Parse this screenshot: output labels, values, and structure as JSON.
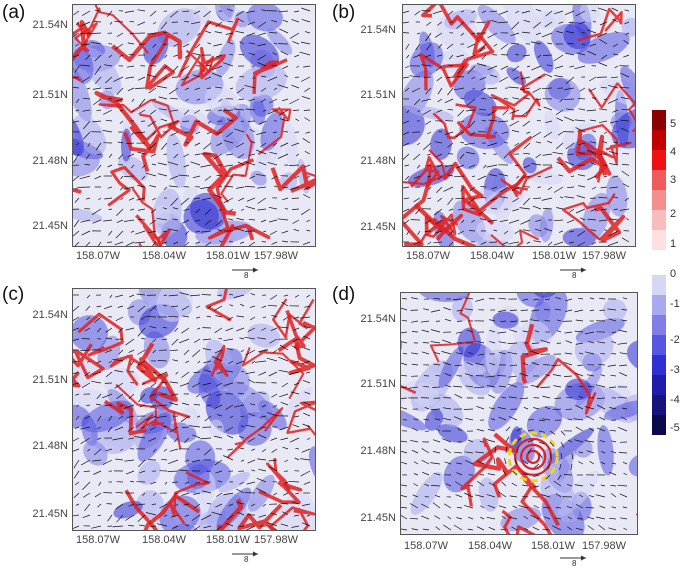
{
  "panels": [
    {
      "label": "(a)",
      "type": "cold-pool"
    },
    {
      "label": "(b)",
      "type": "cold-pool"
    },
    {
      "label": "(c)",
      "type": "cold-pool"
    },
    {
      "label": "(d)",
      "type": "vortex"
    }
  ],
  "y_ticks": [
    "21.54N",
    "21.51N",
    "21.48N",
    "21.45N"
  ],
  "x_ticks": [
    "158.07W",
    "158.04W",
    "158.01W",
    "157.98W"
  ],
  "ref_vector": "8",
  "colorbar_positive": {
    "ticks": [
      "5",
      "4",
      "3",
      "2",
      "1"
    ],
    "colors": [
      "#8b0000",
      "#c00000",
      "#ee1111",
      "#f15a5a",
      "#f58e8e",
      "#f8bcbc",
      "#fde0e0"
    ]
  },
  "colorbar_negative": {
    "ticks": [
      "0",
      "-1",
      "-2",
      "-3",
      "-4",
      "-5"
    ],
    "colors": [
      "#d6d6f5",
      "#a9a9ef",
      "#7f7fe6",
      "#5656e0",
      "#2f2fd4",
      "#1d1daa",
      "#14147a",
      "#0a0a4c"
    ]
  },
  "colors": {
    "red": "#e12020",
    "blue": "#6f72e8",
    "highlight": "#f2d41b"
  }
}
